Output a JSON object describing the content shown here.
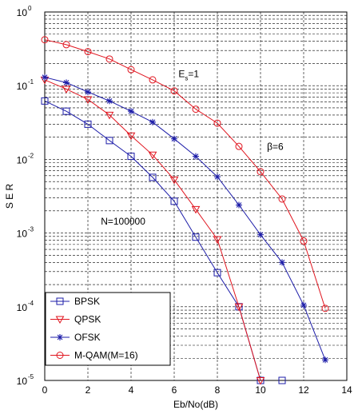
{
  "chart_data": {
    "type": "line",
    "xlabel": "Eb/No(dB)",
    "ylabel": "S E R",
    "xlim": [
      0,
      14
    ],
    "ylim": [
      1e-05,
      1
    ],
    "yscale": "log",
    "grid": true,
    "xticks": [
      "0",
      "2",
      "4",
      "6",
      "8",
      "10",
      "12",
      "14"
    ],
    "yticks": [
      {
        "base": "10",
        "exp": "0"
      },
      {
        "base": "10",
        "exp": "-1"
      },
      {
        "base": "10",
        "exp": "-2"
      },
      {
        "base": "10",
        "exp": "-3"
      },
      {
        "base": "10",
        "exp": "-4"
      },
      {
        "base": "10",
        "exp": "-5"
      }
    ],
    "legend_position": "bottom-left",
    "annotations": [
      {
        "id": "es",
        "main": "E",
        "sub": "s",
        "rest": "=1",
        "x": 6.2,
        "y": 0.13
      },
      {
        "id": "beta",
        "text": "β=6",
        "x": 10.3,
        "y": 0.0135
      },
      {
        "id": "n",
        "text": "N=100000",
        "x": 2.6,
        "y": 0.0013
      }
    ],
    "series": [
      {
        "name": "BPSK",
        "color": "#1c1ca8",
        "marker": "square",
        "x": [
          0,
          1,
          2,
          3,
          4,
          5,
          6,
          7,
          8,
          9,
          10,
          11
        ],
        "y": [
          0.062,
          0.045,
          0.03,
          0.018,
          0.011,
          0.0057,
          0.0027,
          0.00088,
          0.00029,
          0.0001,
          1e-05,
          1e-05
        ],
        "line_x": [
          0,
          1,
          2,
          3,
          4,
          5,
          6,
          7,
          8,
          9,
          10
        ],
        "line_y": [
          0.062,
          0.045,
          0.03,
          0.018,
          0.011,
          0.0057,
          0.0027,
          0.00088,
          0.00029,
          0.0001,
          1e-05
        ]
      },
      {
        "name": "QPSK",
        "color": "#e0141e",
        "marker": "triangle-down",
        "x": [
          0,
          1,
          2,
          3,
          4,
          5,
          6,
          7,
          8,
          9,
          10
        ],
        "y": [
          0.12,
          0.09,
          0.065,
          0.04,
          0.021,
          0.0115,
          0.0053,
          0.0021,
          0.00082,
          0.0001,
          1e-05
        ]
      },
      {
        "name": "OFSK",
        "color": "#1c1ca8",
        "marker": "star",
        "x": [
          0,
          1,
          2,
          3,
          4,
          5,
          6,
          7,
          8,
          9,
          10,
          11,
          12,
          13
        ],
        "y": [
          0.13,
          0.11,
          0.082,
          0.062,
          0.045,
          0.032,
          0.019,
          0.011,
          0.0058,
          0.0024,
          0.00095,
          0.0004,
          0.000105,
          1.9e-05
        ]
      },
      {
        "name": "M-QAM(M=16)",
        "color": "#e0141e",
        "marker": "circle",
        "x": [
          0,
          1,
          2,
          3,
          4,
          5,
          6,
          7,
          8,
          9,
          10,
          11,
          12,
          13
        ],
        "y": [
          0.42,
          0.36,
          0.29,
          0.23,
          0.165,
          0.12,
          0.085,
          0.048,
          0.031,
          0.015,
          0.0068,
          0.0029,
          0.00078,
          9.5e-05
        ]
      }
    ]
  }
}
